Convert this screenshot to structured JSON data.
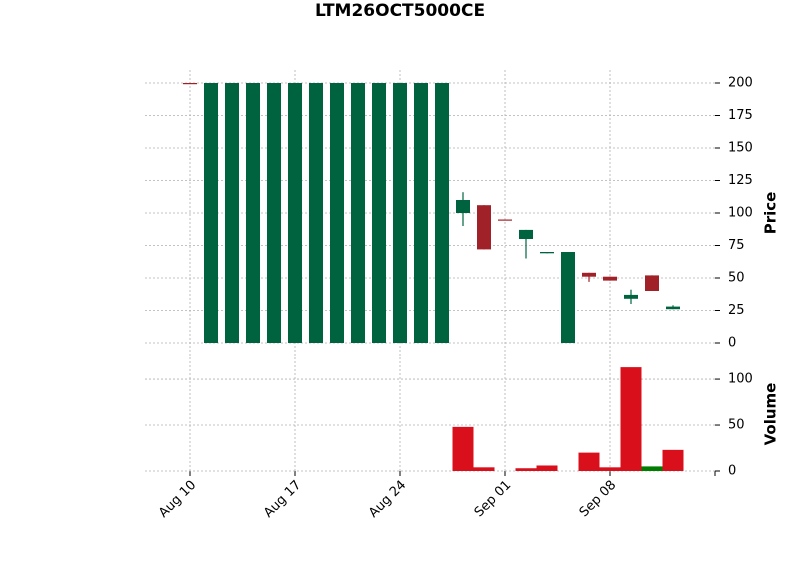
{
  "chart_data": {
    "type": "candlestick",
    "title": "LTM26OCT5000CE",
    "categories": [
      "Aug 10",
      null,
      null,
      null,
      null,
      "Aug 17",
      null,
      null,
      null,
      null,
      "Aug 24",
      null,
      null,
      null,
      null,
      "Sep 01",
      null,
      null,
      null,
      null,
      "Sep 08",
      null,
      null,
      null
    ],
    "open": [
      200,
      0,
      0,
      0,
      0,
      0,
      0,
      0,
      0,
      0,
      0,
      0,
      0,
      100,
      106,
      95,
      80,
      69,
      0,
      54,
      51,
      34,
      52,
      26
    ],
    "high": [
      200,
      200,
      200,
      200,
      200,
      200,
      200,
      200,
      200,
      200,
      200,
      200,
      200,
      116,
      106,
      95,
      87,
      70,
      70,
      54,
      51,
      41,
      52,
      29
    ],
    "low": [
      200,
      0,
      0,
      0,
      0,
      0,
      0,
      0,
      0,
      0,
      0,
      0,
      0,
      90,
      72,
      95,
      65,
      69,
      0,
      47,
      48,
      30,
      40,
      26
    ],
    "close": [
      200,
      200,
      200,
      200,
      200,
      200,
      200,
      200,
      200,
      200,
      200,
      200,
      200,
      110,
      72,
      95,
      87,
      70,
      70,
      51,
      48,
      37,
      40,
      28
    ],
    "up_color": "#006340",
    "down_color": "#a02128",
    "ylabel": "Price",
    "ylim": [
      -10,
      210
    ],
    "yticks": [
      0,
      25,
      50,
      75,
      100,
      125,
      150,
      175,
      200
    ],
    "grid": true,
    "volume": {
      "values": [
        0,
        0,
        0,
        0,
        0,
        0,
        0,
        0,
        0,
        0,
        0,
        0,
        0,
        48,
        4,
        0,
        3,
        6,
        0,
        20,
        4,
        113,
        5,
        23
      ],
      "up_color": "#007d00",
      "down_color": "#d90f1c",
      "ylabel": "Volume",
      "ylim": [
        0,
        124
      ],
      "yticks": [
        0,
        50,
        100
      ]
    }
  }
}
